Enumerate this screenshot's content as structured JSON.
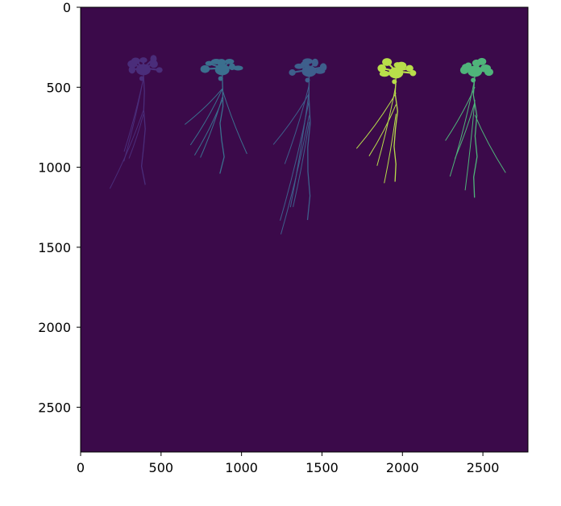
{
  "chart_data": {
    "type": "heatmap",
    "title": "",
    "xlabel": "",
    "ylabel": "",
    "xlim": [
      0,
      2780
    ],
    "ylim": [
      2780,
      0
    ],
    "grid": false,
    "legend": "none",
    "colormap": "viridis",
    "background_color": "#3b0a4a",
    "x_ticks": [
      {
        "value": 0,
        "label": "0"
      },
      {
        "value": 500,
        "label": "500"
      },
      {
        "value": 1000,
        "label": "1000"
      },
      {
        "value": 1500,
        "label": "1500"
      },
      {
        "value": 2000,
        "label": "2000"
      },
      {
        "value": 2500,
        "label": "2500"
      }
    ],
    "y_ticks": [
      {
        "value": 0,
        "label": "0"
      },
      {
        "value": 500,
        "label": "500"
      },
      {
        "value": 1000,
        "label": "1000"
      },
      {
        "value": 1500,
        "label": "1500"
      },
      {
        "value": 2000,
        "label": "2000"
      },
      {
        "value": 2500,
        "label": "2500"
      }
    ],
    "labeled_regions": [
      {
        "label_value": 1,
        "color": "#4a2d7a",
        "center_x": 390,
        "rosette_y": 380,
        "root_tip_y": 1080
      },
      {
        "label_value": 2,
        "color": "#3b6f8e",
        "center_x": 880,
        "rosette_y": 380,
        "root_tip_y": 1010
      },
      {
        "label_value": 3,
        "color": "#3e5f8c",
        "center_x": 1420,
        "rosette_y": 390,
        "root_tip_y": 1300
      },
      {
        "label_value": 4,
        "color": "#b8de4a",
        "center_x": 1960,
        "rosette_y": 400,
        "root_tip_y": 1060
      },
      {
        "label_value": 5,
        "color": "#4fb47a",
        "center_x": 2450,
        "rosette_y": 390,
        "root_tip_y": 1160
      }
    ]
  }
}
